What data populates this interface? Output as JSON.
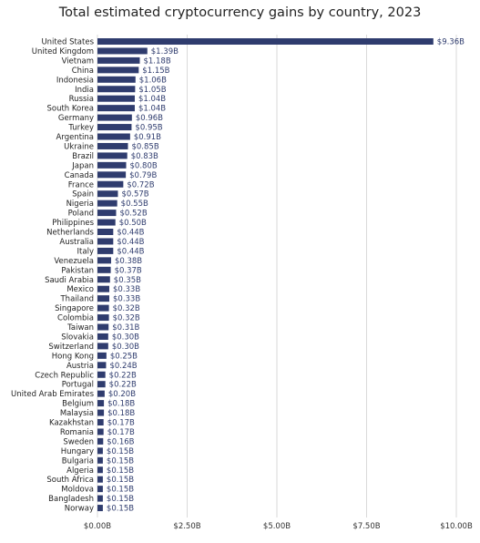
{
  "chart_data": {
    "type": "bar",
    "orientation": "horizontal",
    "title": "Total estimated cryptocurrency gains by country, 2023",
    "xlabel": "",
    "ylabel": "",
    "xlim": [
      0,
      10
    ],
    "x_ticks": [
      0,
      2.5,
      5,
      7.5,
      10
    ],
    "x_tick_labels": [
      "$0.00B",
      "$2.50B",
      "$5.00B",
      "$7.50B",
      "$10.00B"
    ],
    "grid": "vertical",
    "legend": "none",
    "categories": [
      "United States",
      "United Kingdom",
      "Vietnam",
      "China",
      "Indonesia",
      "India",
      "Russia",
      "South Korea",
      "Germany",
      "Turkey",
      "Argentina",
      "Ukraine",
      "Brazil",
      "Japan",
      "Canada",
      "France",
      "Spain",
      "Nigeria",
      "Poland",
      "Philippines",
      "Netherlands",
      "Australia",
      "Italy",
      "Venezuela",
      "Pakistan",
      "Saudi Arabia",
      "Mexico",
      "Thailand",
      "Singapore",
      "Colombia",
      "Taiwan",
      "Slovakia",
      "Switzerland",
      "Hong Kong",
      "Austria",
      "Czech Republic",
      "Portugal",
      "United Arab Emirates",
      "Belgium",
      "Malaysia",
      "Kazakhstan",
      "Romania",
      "Sweden",
      "Hungary",
      "Bulgaria",
      "Algeria",
      "South Africa",
      "Moldova",
      "Bangladesh",
      "Norway"
    ],
    "values": [
      9.36,
      1.39,
      1.18,
      1.15,
      1.06,
      1.05,
      1.04,
      1.04,
      0.96,
      0.95,
      0.91,
      0.85,
      0.83,
      0.8,
      0.79,
      0.72,
      0.57,
      0.55,
      0.52,
      0.5,
      0.44,
      0.44,
      0.44,
      0.38,
      0.37,
      0.35,
      0.33,
      0.33,
      0.32,
      0.32,
      0.31,
      0.3,
      0.3,
      0.25,
      0.24,
      0.22,
      0.22,
      0.2,
      0.18,
      0.18,
      0.17,
      0.17,
      0.16,
      0.15,
      0.15,
      0.15,
      0.15,
      0.15,
      0.15,
      0.15
    ],
    "value_labels": [
      "$9.36B",
      "$1.39B",
      "$1.18B",
      "$1.15B",
      "$1.06B",
      "$1.05B",
      "$1.04B",
      "$1.04B",
      "$0.96B",
      "$0.95B",
      "$0.91B",
      "$0.85B",
      "$0.83B",
      "$0.80B",
      "$0.79B",
      "$0.72B",
      "$0.57B",
      "$0.55B",
      "$0.52B",
      "$0.50B",
      "$0.44B",
      "$0.44B",
      "$0.44B",
      "$0.38B",
      "$0.37B",
      "$0.35B",
      "$0.33B",
      "$0.33B",
      "$0.32B",
      "$0.32B",
      "$0.31B",
      "$0.30B",
      "$0.30B",
      "$0.25B",
      "$0.24B",
      "$0.22B",
      "$0.22B",
      "$0.20B",
      "$0.18B",
      "$0.18B",
      "$0.17B",
      "$0.17B",
      "$0.16B",
      "$0.15B",
      "$0.15B",
      "$0.15B",
      "$0.15B",
      "$0.15B",
      "$0.15B",
      "$0.15B"
    ],
    "colors": {
      "bar": "#2f3c6e",
      "value_label": "#2f3c6e",
      "category_label": "#222222",
      "grid": "#d9d9d9",
      "tick_label": "#333333"
    }
  }
}
